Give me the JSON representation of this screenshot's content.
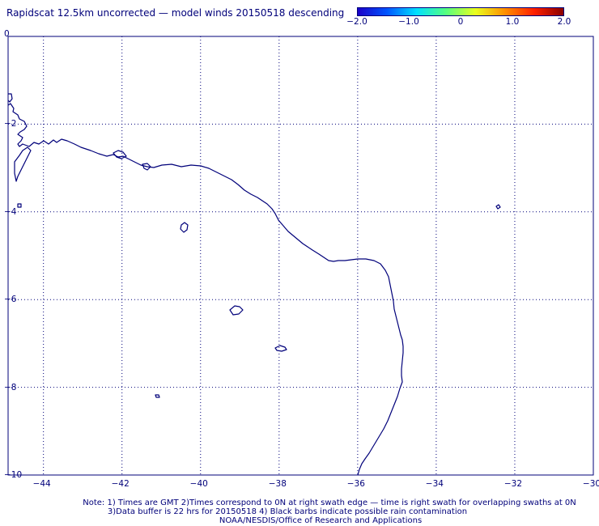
{
  "title": "Rapidscat 12.5km uncorrected — model winds 20150518 descending",
  "colorbar": {
    "labels": [
      "−2.0",
      "−1.0",
      "0",
      "1.0",
      "2.0"
    ],
    "values": [
      -2.0,
      -1.0,
      0,
      1.0,
      2.0
    ],
    "colors": [
      "#1a00c8",
      "#0055ff",
      "#00e0ff",
      "#55ff80",
      "#e8ff20",
      "#ff9000",
      "#ff2000",
      "#8a0000"
    ]
  },
  "axes": {
    "lon_ticks": [
      "−44",
      "−42",
      "−40",
      "−38",
      "−36",
      "−34",
      "−32",
      "−30"
    ],
    "lon_values": [
      -44,
      -42,
      -40,
      -38,
      -36,
      -34,
      -32,
      -30
    ],
    "lat_ticks": [
      "0",
      "−2",
      "−4",
      "−6",
      "−8",
      "−10"
    ],
    "lat_values": [
      0,
      -2,
      -4,
      -6,
      -8,
      -10
    ],
    "lon_range": [
      -44.9,
      -30
    ],
    "lat_range": [
      -10,
      0
    ],
    "grid": "dotted"
  },
  "map": {
    "line_color": "#00007a",
    "features": [
      "coastline",
      "islands"
    ]
  },
  "notes": [
    "Note: 1) Times are GMT 2)Times correspond to 0N at right swath edge — time is right swath for overlapping swaths at 0N",
    "3)Data buffer is 22 hrs for 20150518 4) Black barbs indicate possible rain contamination",
    "NOAA/NESDIS/Office of Research and Applications"
  ]
}
